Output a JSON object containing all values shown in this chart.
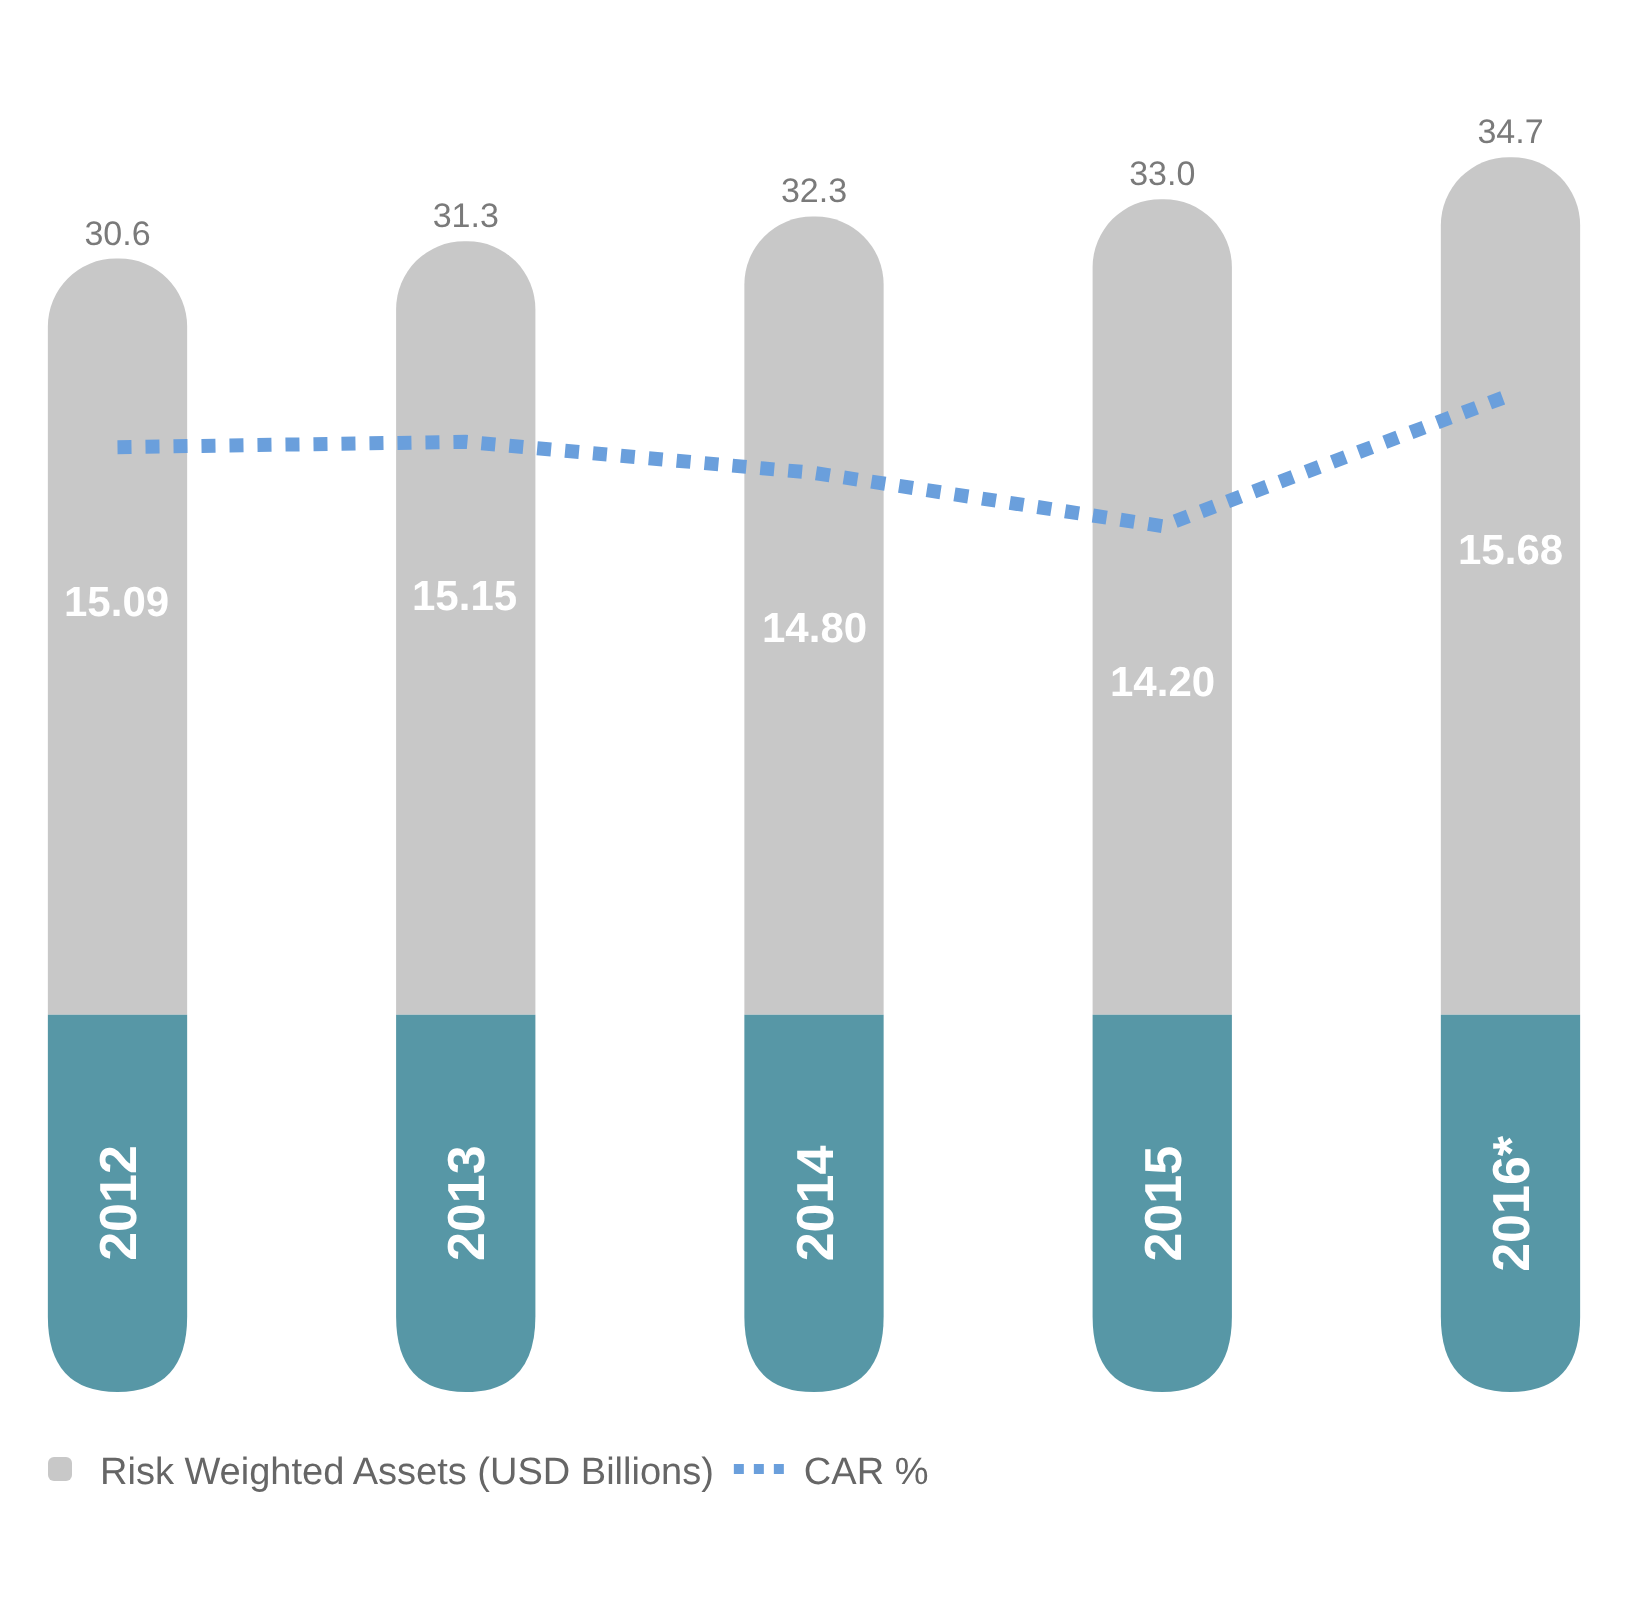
{
  "chart_data": {
    "type": "bar",
    "categories": [
      "2012",
      "2013",
      "2014",
      "2015",
      "2016*"
    ],
    "series": [
      {
        "name": "Risk Weighted Assets (USD Billions)",
        "color": "#c8c8c8",
        "values": [
          30.6,
          31.3,
          32.3,
          33.0,
          34.7
        ],
        "value_labels": [
          "30.6",
          "31.3",
          "32.3",
          "33.0",
          "34.7"
        ]
      },
      {
        "name": "CAR %",
        "type": "line",
        "axis": "y2",
        "color": "#6a9fdc",
        "line_style": "dotted",
        "values": [
          15.09,
          15.15,
          14.8,
          14.2,
          15.68
        ],
        "value_labels": [
          "15.09",
          "15.15",
          "14.80",
          "14.20",
          "15.68"
        ]
      }
    ],
    "grid": false,
    "legend": "bottom left",
    "marker": "none"
  }
}
